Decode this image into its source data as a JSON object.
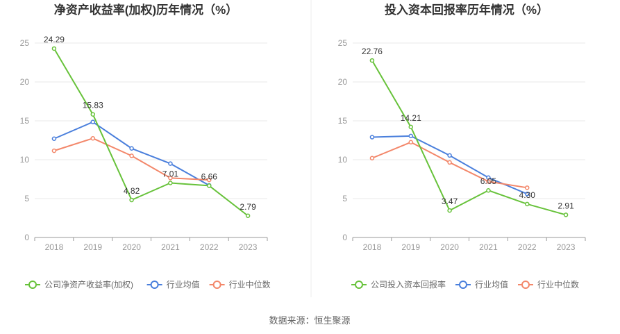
{
  "source": "数据来源：恒生聚源",
  "chart_data": [
    {
      "type": "line",
      "title": "净资产收益率(加权)历年情况（%）",
      "categories": [
        "2018",
        "2019",
        "2020",
        "2021",
        "2022",
        "2023"
      ],
      "ylim": [
        0,
        25
      ],
      "yticks": [
        0,
        5,
        10,
        15,
        20,
        25
      ],
      "grid": true,
      "legend_position": "bottom",
      "series": [
        {
          "name": "公司净资产收益率(加权)",
          "color": "#67c23a",
          "values": [
            24.29,
            15.83,
            4.82,
            7.01,
            6.66,
            2.79
          ],
          "labels": [
            "24.29",
            "15.83",
            "4.82",
            "7.01",
            "6.66",
            "2.79"
          ]
        },
        {
          "name": "行业均值",
          "color": "#4a7fdc",
          "values": [
            12.7,
            14.85,
            11.45,
            9.5,
            6.7,
            null
          ]
        },
        {
          "name": "行业中位数",
          "color": "#f3876a",
          "values": [
            11.15,
            12.75,
            10.5,
            7.65,
            7.4,
            null
          ]
        }
      ]
    },
    {
      "type": "line",
      "title": "投入资本回报率历年情况（%）",
      "categories": [
        "2018",
        "2019",
        "2020",
        "2021",
        "2022",
        "2023"
      ],
      "ylim": [
        0,
        25
      ],
      "yticks": [
        0,
        5,
        10,
        15,
        20,
        25
      ],
      "grid": true,
      "legend_position": "bottom",
      "series": [
        {
          "name": "公司投入资本回报率",
          "color": "#67c23a",
          "values": [
            22.76,
            14.21,
            3.47,
            6.05,
            4.3,
            2.91
          ],
          "labels": [
            "22.76",
            "14.21",
            "3.47",
            "6.05",
            "4.30",
            "2.91"
          ]
        },
        {
          "name": "行业均值",
          "color": "#4a7fdc",
          "values": [
            12.9,
            13.05,
            10.55,
            7.7,
            5.6,
            null
          ]
        },
        {
          "name": "行业中位数",
          "color": "#f3876a",
          "values": [
            10.2,
            12.25,
            9.65,
            7.2,
            6.4,
            null
          ]
        }
      ]
    }
  ]
}
